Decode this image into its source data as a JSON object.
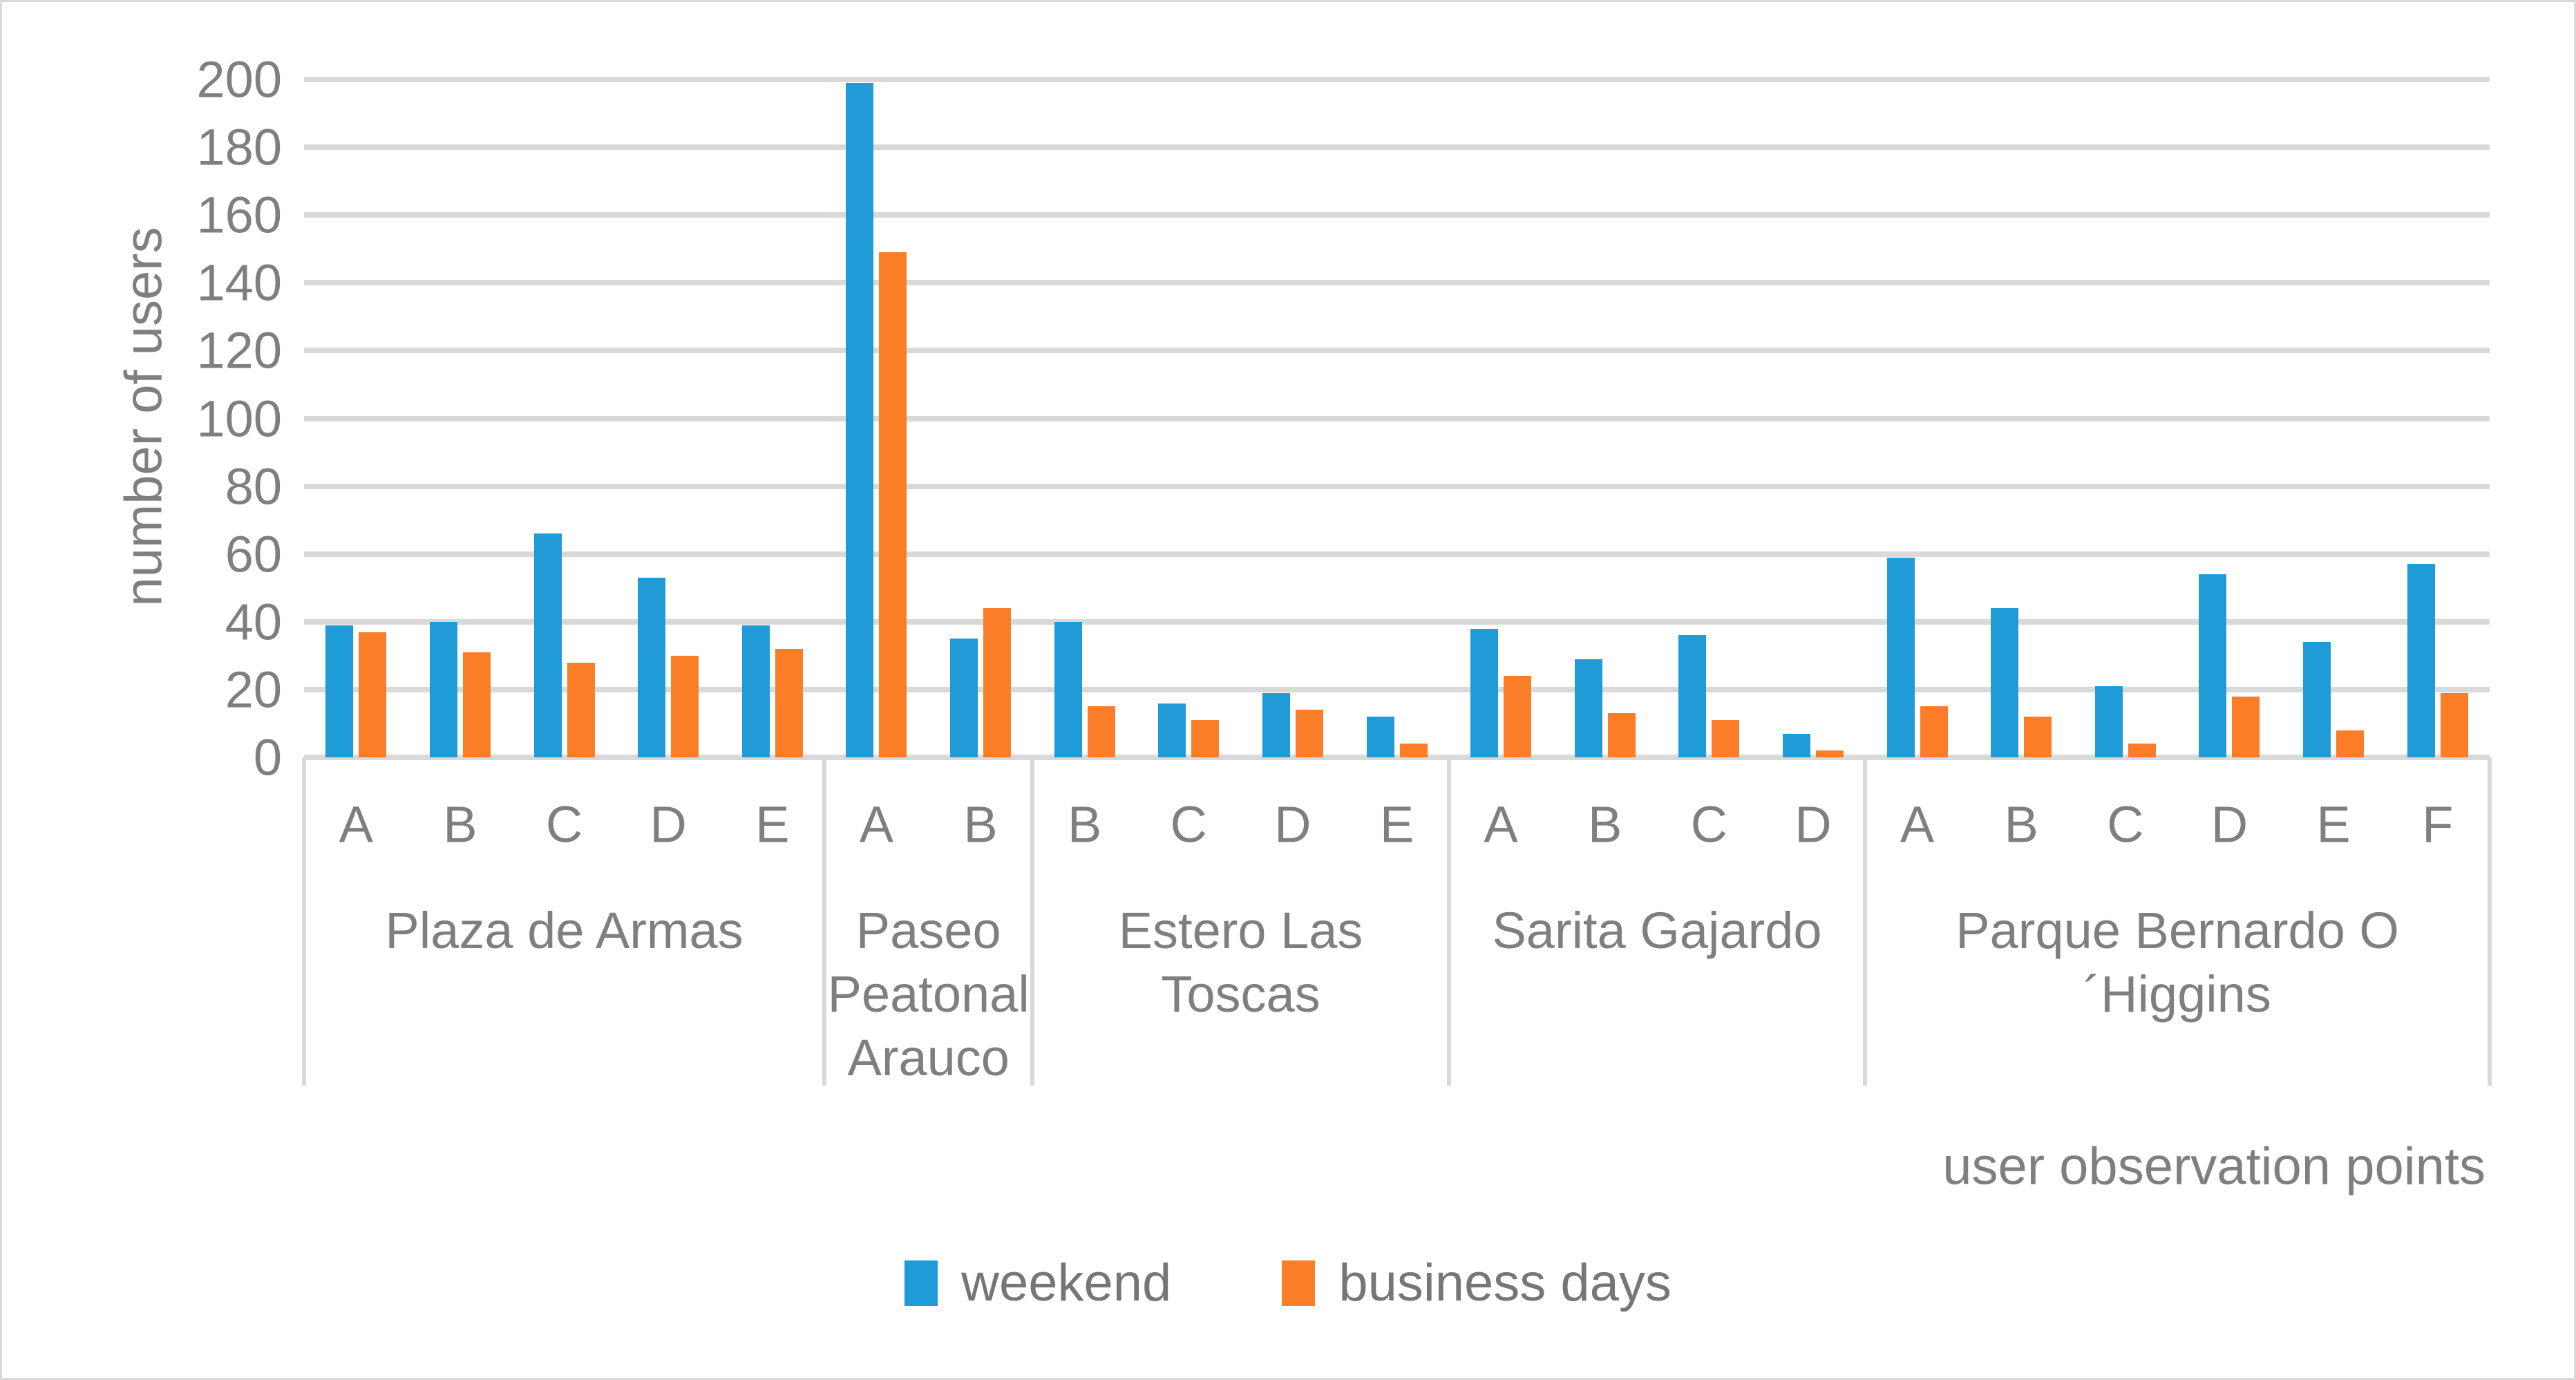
{
  "figure": {
    "background": "#ffffff",
    "frame_border_color": "#d9d9d9",
    "gridline_color": "#d9d9d9",
    "text_color": "#7f7f7f"
  },
  "chart_data": {
    "type": "bar",
    "title": "",
    "ylabel": "number of users",
    "xlabel": "user observation points",
    "ylim": [
      0,
      200
    ],
    "yticks": [
      0,
      20,
      40,
      60,
      80,
      100,
      120,
      140,
      160,
      180,
      200
    ],
    "grid": "horizontal",
    "legend_position": "bottom-center",
    "series": [
      {
        "name": "weekend",
        "color": "#1f9bd8"
      },
      {
        "name": "business days",
        "color": "#fb7d27"
      }
    ],
    "groups": [
      {
        "name": "Plaza de Armas",
        "points": [
          {
            "label": "A",
            "weekend": 39,
            "business_days": 37
          },
          {
            "label": "B",
            "weekend": 40,
            "business_days": 31
          },
          {
            "label": "C",
            "weekend": 66,
            "business_days": 28
          },
          {
            "label": "D",
            "weekend": 53,
            "business_days": 30
          },
          {
            "label": "E",
            "weekend": 39,
            "business_days": 32
          }
        ]
      },
      {
        "name": "Paseo Peatonal Arauco",
        "points": [
          {
            "label": "A",
            "weekend": 199,
            "business_days": 149
          },
          {
            "label": "B",
            "weekend": 35,
            "business_days": 44
          }
        ]
      },
      {
        "name": "Estero Las Toscas",
        "points": [
          {
            "label": "B",
            "weekend": 40,
            "business_days": 15
          },
          {
            "label": "C",
            "weekend": 16,
            "business_days": 11
          },
          {
            "label": "D",
            "weekend": 19,
            "business_days": 14
          },
          {
            "label": "E",
            "weekend": 12,
            "business_days": 4
          }
        ]
      },
      {
        "name": "Sarita Gajardo",
        "points": [
          {
            "label": "A",
            "weekend": 38,
            "business_days": 24
          },
          {
            "label": "B",
            "weekend": 29,
            "business_days": 13
          },
          {
            "label": "C",
            "weekend": 36,
            "business_days": 11
          },
          {
            "label": "D",
            "weekend": 7,
            "business_days": 2
          }
        ]
      },
      {
        "name": "Parque Bernardo O´Higgins",
        "points": [
          {
            "label": "A",
            "weekend": 59,
            "business_days": 15
          },
          {
            "label": "B",
            "weekend": 44,
            "business_days": 12
          },
          {
            "label": "C",
            "weekend": 21,
            "business_days": 4
          },
          {
            "label": "D",
            "weekend": 54,
            "business_days": 18
          },
          {
            "label": "E",
            "weekend": 34,
            "business_days": 8
          },
          {
            "label": "F",
            "weekend": 57,
            "business_days": 19
          }
        ]
      }
    ]
  }
}
